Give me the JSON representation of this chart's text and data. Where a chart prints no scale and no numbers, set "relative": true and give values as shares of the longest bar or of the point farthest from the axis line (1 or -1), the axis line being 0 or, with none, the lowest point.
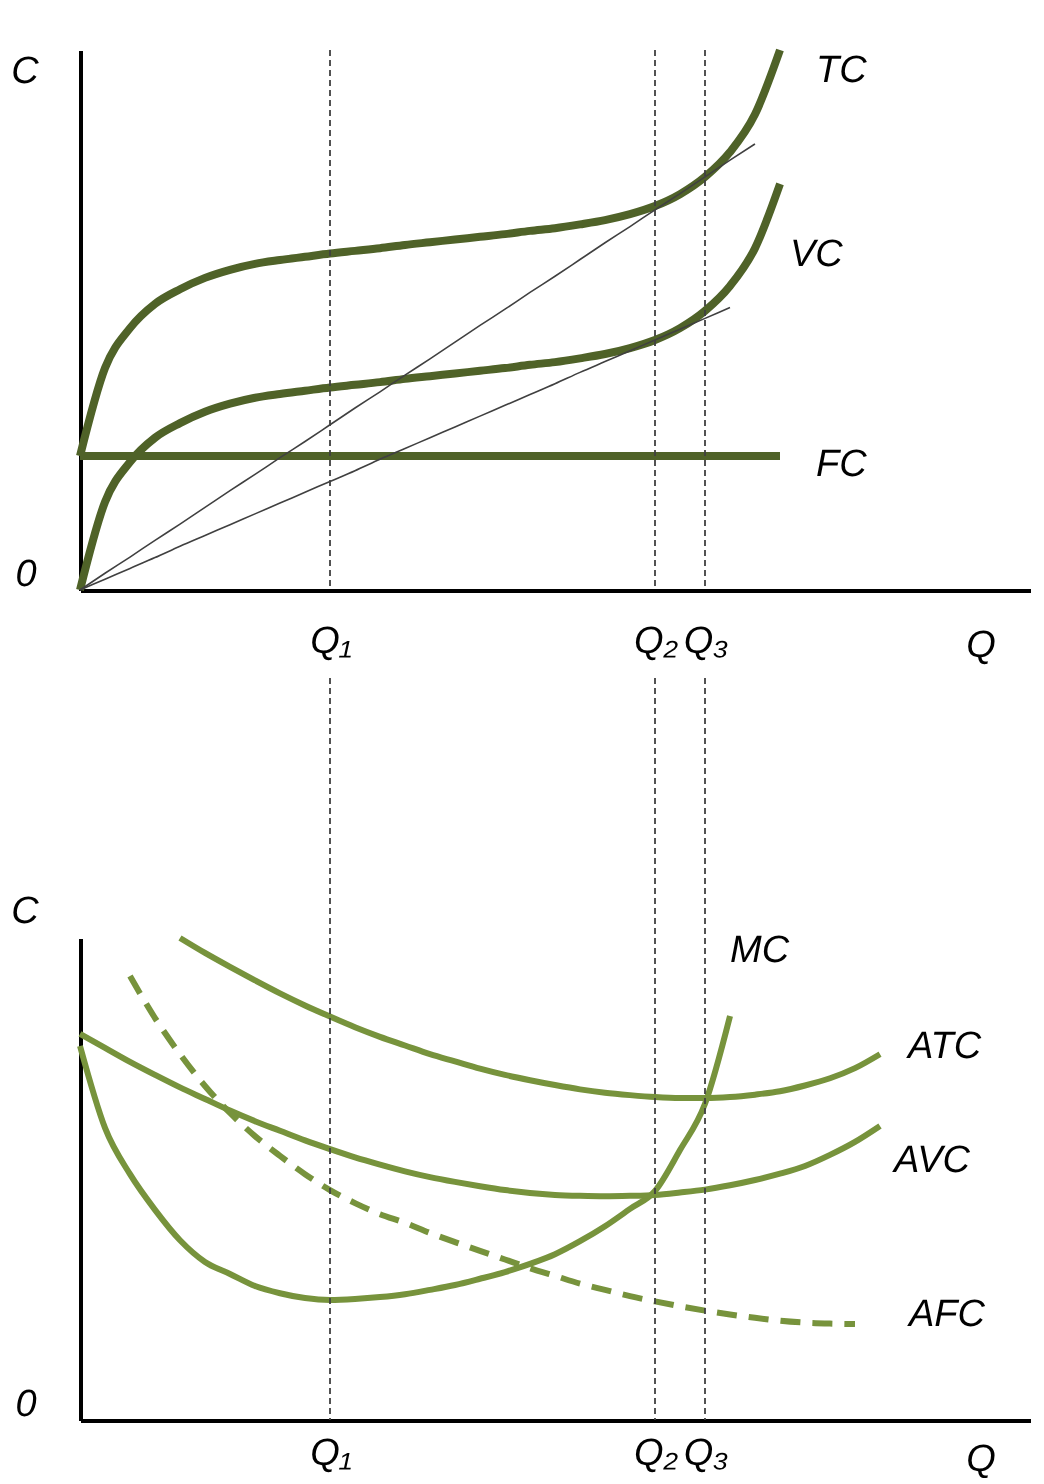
{
  "chart_data": [
    {
      "type": "line",
      "ylabel": "C",
      "xlabel": "Q",
      "annotations": [
        "0"
      ],
      "relative": true,
      "grid": false,
      "categories": [
        null,
        null,
        null,
        null,
        null,
        null,
        null,
        null,
        null,
        null,
        "Q₁",
        null,
        null,
        null,
        null,
        null,
        null,
        null,
        null,
        null,
        null,
        null,
        null,
        "Q₂",
        null,
        "Q₃",
        null,
        null,
        null,
        null,
        null,
        null,
        null,
        null,
        null,
        null,
        null,
        null,
        null
      ],
      "series": [
        {
          "name": "TC",
          "color": "#4f6228",
          "values": [
            0.248,
            0.411,
            0.485,
            0.53,
            0.557,
            0.578,
            0.593,
            0.604,
            0.611,
            0.617,
            0.623,
            0.628,
            0.633,
            0.639,
            0.644,
            0.649,
            0.654,
            0.659,
            0.665,
            0.67,
            0.677,
            0.685,
            0.696,
            0.711,
            0.733,
            0.765,
            0.811,
            0.881,
            1.0,
            null,
            null,
            null,
            null,
            null,
            null,
            null,
            null,
            null,
            null
          ]
        },
        {
          "name": "VC",
          "color": "#4f6228",
          "values": [
            0,
            0.163,
            0.237,
            0.282,
            0.309,
            0.33,
            0.345,
            0.356,
            0.363,
            0.369,
            0.375,
            0.38,
            0.385,
            0.391,
            0.396,
            0.401,
            0.406,
            0.411,
            0.417,
            0.422,
            0.429,
            0.437,
            0.448,
            0.463,
            0.485,
            0.517,
            0.563,
            0.633,
            0.752,
            null,
            null,
            null,
            null,
            null,
            null,
            null,
            null,
            null,
            null
          ]
        },
        {
          "name": "FC",
          "color": "#4f6228",
          "values": [
            0.248,
            0.248,
            0.248,
            0.248,
            0.248,
            0.248,
            0.248,
            0.248,
            0.248,
            0.248,
            0.248,
            0.248,
            0.248,
            0.248,
            0.248,
            0.248,
            0.248,
            0.248,
            0.248,
            0.248,
            0.248,
            0.248,
            0.248,
            0.248,
            0.248,
            0.248,
            0.248,
            0.248,
            0.248,
            null,
            null,
            null,
            null,
            null,
            null,
            null,
            null,
            null,
            null
          ]
        },
        {
          "color": "#404040",
          "values": [
            0,
            0.031,
            0.061,
            0.092,
            0.122,
            0.153,
            0.184,
            0.214,
            0.245,
            0.275,
            0.306,
            0.337,
            0.367,
            0.398,
            0.428,
            0.459,
            0.49,
            0.52,
            0.551,
            0.581,
            0.612,
            0.643,
            0.673,
            0.704,
            0.734,
            0.765,
            0.796,
            0.826,
            null,
            null,
            null,
            null,
            null,
            null,
            null,
            null,
            null,
            null,
            null
          ]
        },
        {
          "color": "#404040",
          "values": [
            0,
            0.02,
            0.04,
            0.06,
            0.081,
            0.101,
            0.121,
            0.141,
            0.161,
            0.181,
            0.201,
            0.221,
            0.242,
            0.262,
            0.282,
            0.302,
            0.322,
            0.342,
            0.362,
            0.382,
            0.403,
            0.423,
            0.443,
            0.463,
            0.483,
            0.503,
            0.523,
            null,
            null,
            null,
            null,
            null,
            null,
            null,
            null,
            null,
            null,
            null,
            null
          ]
        }
      ],
      "ref_lines": [
        {
          "axis": "x",
          "value": "Q₁",
          "color": "#404040",
          "line_style": "dashed"
        },
        {
          "axis": "x",
          "value": "Q₂",
          "color": "#404040",
          "line_style": "dashed"
        },
        {
          "axis": "x",
          "value": "Q₃",
          "color": "#404040",
          "line_style": "dashed"
        }
      ]
    },
    {
      "type": "line",
      "ylabel": "C",
      "xlabel": "Q",
      "annotations": [
        "0"
      ],
      "relative": true,
      "grid": false,
      "categories": [
        null,
        null,
        null,
        null,
        null,
        null,
        null,
        null,
        null,
        null,
        "Q₁",
        null,
        null,
        null,
        null,
        null,
        null,
        null,
        null,
        null,
        null,
        null,
        null,
        "Q₂",
        null,
        "Q₃",
        null,
        null,
        null,
        null,
        null,
        null,
        null,
        null,
        null,
        null,
        null,
        null,
        null
      ],
      "series": [
        {
          "name": "MC",
          "color": "#77933c",
          "values": [
            0.776,
            0.606,
            0.51,
            0.436,
            0.373,
            0.328,
            0.303,
            0.278,
            0.263,
            0.253,
            0.249,
            0.251,
            0.255,
            0.261,
            0.27,
            0.28,
            0.293,
            0.307,
            0.324,
            0.344,
            0.371,
            0.402,
            0.438,
            0.475,
            0.56,
            0.656,
            0.838,
            null,
            null,
            null,
            null,
            null,
            null,
            null,
            null,
            null,
            null,
            null,
            null
          ]
        },
        {
          "name": "ATC",
          "color": "#77933c",
          "values": [
            null,
            null,
            null,
            null,
            1.0,
            0.969,
            0.94,
            0.912,
            0.885,
            0.86,
            0.837,
            0.815,
            0.795,
            0.777,
            0.759,
            0.744,
            0.729,
            0.716,
            0.705,
            0.695,
            0.686,
            0.679,
            0.674,
            0.67,
            0.668,
            0.668,
            0.67,
            0.675,
            0.682,
            0.694,
            0.709,
            0.73,
            0.759,
            null,
            null,
            null,
            null,
            null,
            null
          ]
        },
        {
          "name": "AVC",
          "color": "#77933c",
          "values": [
            0.801,
            0.772,
            0.743,
            0.716,
            0.69,
            0.666,
            0.642,
            0.62,
            0.6,
            0.58,
            0.562,
            0.545,
            0.53,
            0.516,
            0.504,
            0.494,
            0.485,
            0.477,
            0.471,
            0.467,
            0.465,
            0.464,
            0.465,
            0.467,
            0.472,
            0.478,
            0.487,
            0.498,
            0.511,
            0.527,
            0.55,
            0.577,
            0.61,
            null,
            null,
            null,
            null,
            null,
            null
          ]
        },
        {
          "name": "AFC",
          "color": "#77933c",
          "line_style": "dashed",
          "values": [
            null,
            null,
            0.921,
            0.834,
            0.759,
            0.693,
            0.637,
            0.589,
            0.548,
            0.51,
            0.477,
            0.45,
            0.427,
            0.409,
            0.388,
            0.369,
            0.351,
            0.333,
            0.315,
            0.299,
            0.283,
            0.27,
            0.257,
            0.246,
            0.236,
            0.227,
            0.219,
            0.212,
            0.206,
            0.202,
            0.2,
            0.199,
            null,
            null,
            null,
            null,
            null,
            null,
            null
          ]
        }
      ],
      "ref_lines": [
        {
          "axis": "x",
          "value": "Q₁",
          "color": "#404040",
          "line_style": "dashed"
        },
        {
          "axis": "x",
          "value": "Q₂",
          "color": "#404040",
          "line_style": "dashed"
        },
        {
          "axis": "x",
          "value": "Q₃",
          "color": "#404040",
          "line_style": "dashed"
        }
      ]
    }
  ]
}
